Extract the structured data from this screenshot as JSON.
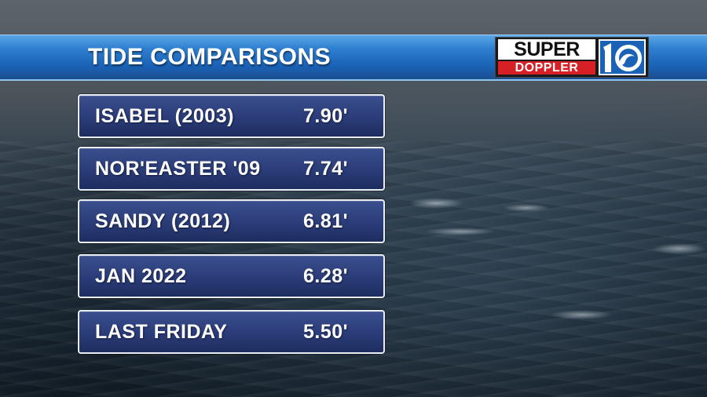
{
  "banner": {
    "title": "TIDE COMPARISONS"
  },
  "logo": {
    "super": "SUPER",
    "doppler": "DOPPLER",
    "number": "10",
    "colors": {
      "red": "#d71f26",
      "blue": "#1a62b6"
    }
  },
  "tides": [
    {
      "label": "ISABEL (2003)",
      "value": "7.90'"
    },
    {
      "label": "NOR'EASTER '09",
      "value": "7.74'"
    },
    {
      "label": "SANDY (2012)",
      "value": "6.81'"
    },
    {
      "label": "JAN 2022",
      "value": "6.28'"
    },
    {
      "label": "LAST FRIDAY",
      "value": "5.50'"
    }
  ]
}
